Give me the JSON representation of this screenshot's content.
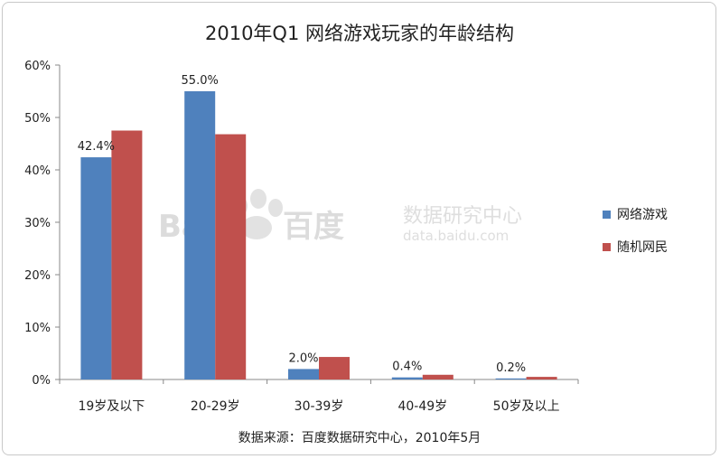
{
  "chart_data": {
    "type": "bar",
    "title": "2010年Q1  网络游戏玩家的年龄结构",
    "categories": [
      "19岁及以下",
      "20-29岁",
      "30-39岁",
      "40-49岁",
      "50岁及以上"
    ],
    "series": [
      {
        "name": "网络游戏",
        "color": "#4f81bd",
        "values": [
          42.4,
          55.0,
          2.0,
          0.4,
          0.2
        ]
      },
      {
        "name": "随机网民",
        "color": "#c0504d",
        "values": [
          47.5,
          46.8,
          4.3,
          0.9,
          0.5
        ]
      }
    ],
    "data_labels": [
      {
        "series": 0,
        "index": 0,
        "text": "42.4%"
      },
      {
        "series": 0,
        "index": 1,
        "text": "55.0%"
      },
      {
        "series": 0,
        "index": 2,
        "text": "2.0%"
      },
      {
        "series": 0,
        "index": 3,
        "text": "0.4%"
      },
      {
        "series": 0,
        "index": 4,
        "text": "0.2%"
      }
    ],
    "ylim": [
      0,
      60
    ],
    "yticks": [
      "0%",
      "10%",
      "20%",
      "30%",
      "40%",
      "50%",
      "60%"
    ],
    "legend_position": "right",
    "grid": false,
    "source": "数据来源：百度数据研究中心，2010年5月"
  },
  "watermark": {
    "logo": "Bai",
    "logo_cn": "百度",
    "sub": "数据研究中心",
    "url": "data.baidu.com"
  }
}
